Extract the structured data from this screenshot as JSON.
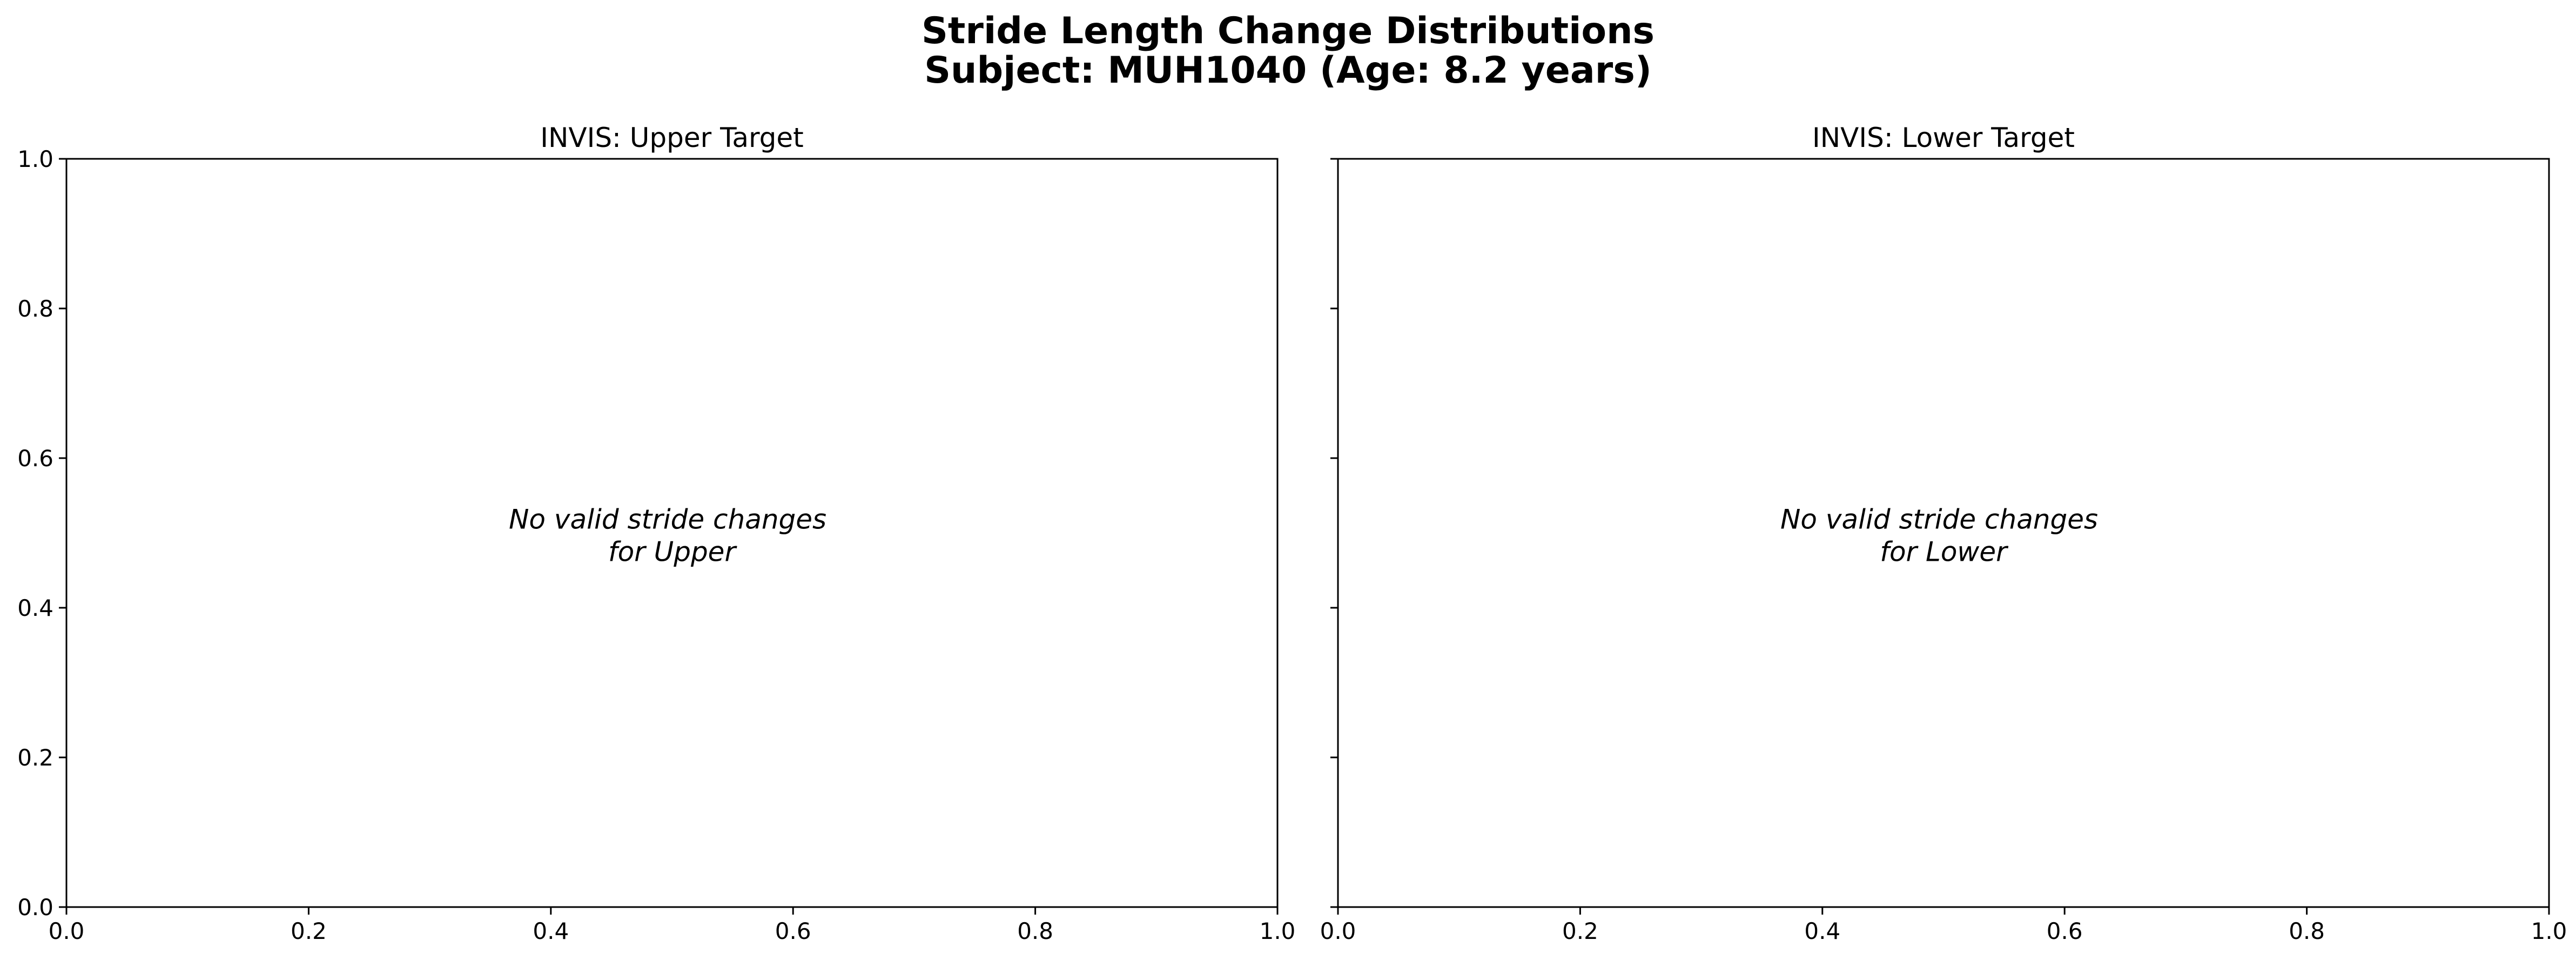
{
  "chart_data": {
    "title_lines": [
      "Stride Length Change Distributions",
      "Subject: MUH1040 (Age: 8.2 years)"
    ],
    "subplots": [
      {
        "type": "bar",
        "title": "INVIS: Upper Target",
        "xlim": [
          0.0,
          1.0
        ],
        "ylim": [
          0.0,
          1.0
        ],
        "x_ticks": [
          "0.0",
          "0.2",
          "0.4",
          "0.6",
          "0.8",
          "1.0"
        ],
        "y_ticks": [
          "0.0",
          "0.2",
          "0.4",
          "0.6",
          "0.8",
          "1.0"
        ],
        "show_y_tick_labels": true,
        "grid": false,
        "series": [],
        "annotation": [
          "No valid stride changes",
          "for Upper"
        ]
      },
      {
        "type": "bar",
        "title": "INVIS: Lower Target",
        "xlim": [
          0.0,
          1.0
        ],
        "ylim": [
          0.0,
          1.0
        ],
        "x_ticks": [
          "0.0",
          "0.2",
          "0.4",
          "0.6",
          "0.8",
          "1.0"
        ],
        "y_ticks": [
          "0.0",
          "0.2",
          "0.4",
          "0.6",
          "0.8",
          "1.0"
        ],
        "show_y_tick_labels": false,
        "grid": false,
        "series": [],
        "annotation": [
          "No valid stride changes",
          "for Lower"
        ]
      }
    ],
    "colors": {
      "axis": "#000000",
      "background": "#ffffff"
    }
  }
}
